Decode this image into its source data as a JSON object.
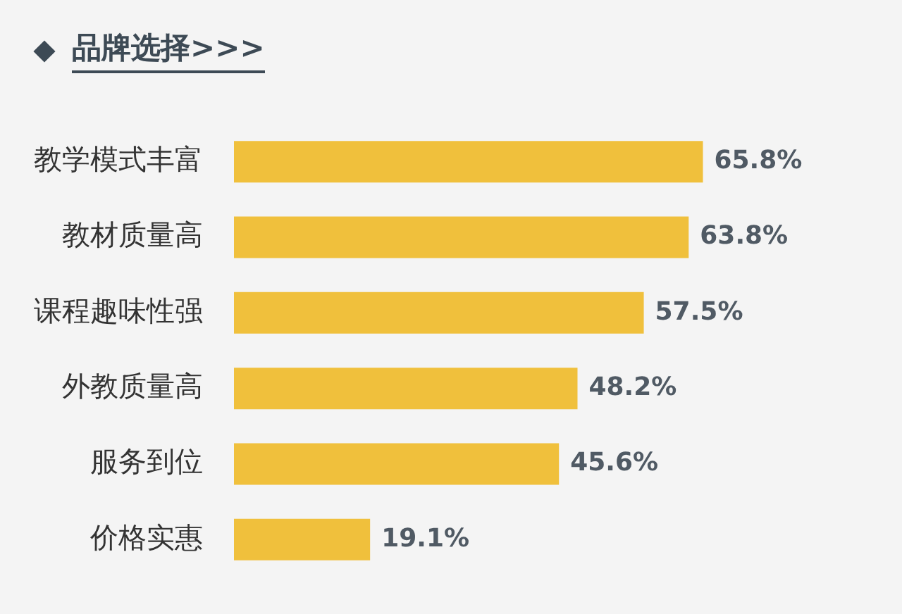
{
  "chart_data": {
    "type": "bar",
    "orientation": "horizontal",
    "title": "品牌选择>>>",
    "categories": [
      "教学模式丰富",
      "教材质量高",
      "课程趣味性强",
      "外教质量高",
      "服务到位",
      "价格实惠"
    ],
    "values": [
      65.8,
      63.8,
      57.5,
      48.2,
      45.6,
      19.1
    ],
    "value_labels": [
      "65.8%",
      "63.8%",
      "57.5%",
      "48.2%",
      "45.6%",
      "19.1%"
    ],
    "color": "#f0c03c",
    "tick_labels": "y"
  }
}
